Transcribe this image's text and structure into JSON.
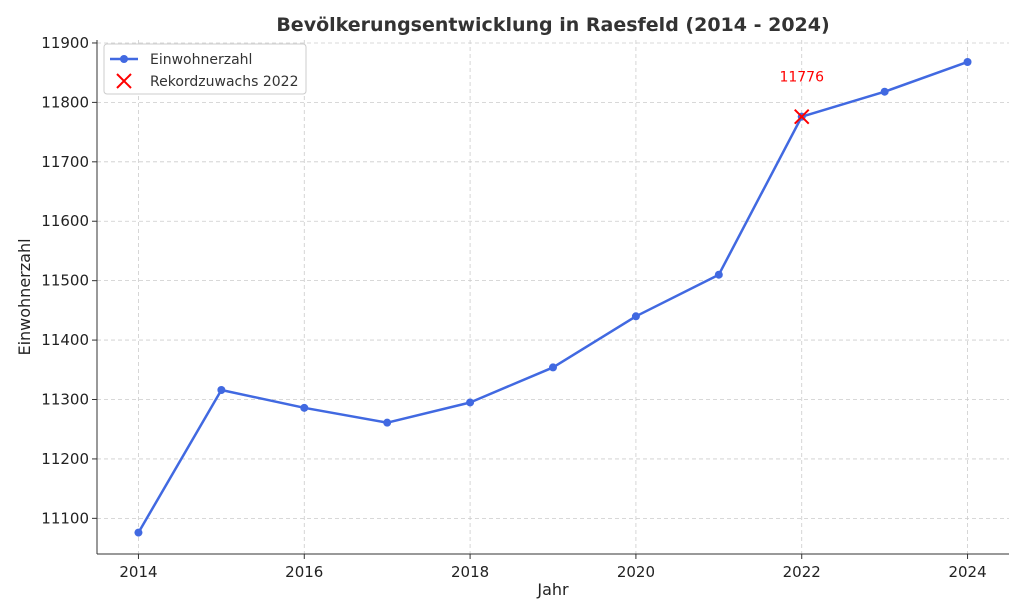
{
  "chart_data": {
    "type": "line",
    "title": "Bevölkerungsentwicklung in Raesfeld (2014 - 2024)",
    "xlabel": "Jahr",
    "ylabel": "Einwohnerzahl",
    "x": [
      2014,
      2015,
      2016,
      2017,
      2018,
      2019,
      2020,
      2021,
      2022,
      2023,
      2024
    ],
    "x_ticks": [
      2014,
      2016,
      2018,
      2020,
      2022,
      2024
    ],
    "y_ticks": [
      11100,
      11200,
      11300,
      11400,
      11500,
      11600,
      11700,
      11800,
      11900
    ],
    "xlim": [
      2013.5,
      2024.5
    ],
    "ylim": [
      11040,
      11905
    ],
    "grid": true,
    "legend_position": "top-left",
    "series": [
      {
        "name": "Einwohnerzahl",
        "color": "#4169e1",
        "values": [
          11076,
          11316,
          11286,
          11261,
          11295,
          11354,
          11440,
          11510,
          11776,
          11818,
          11868
        ]
      }
    ],
    "highlight": {
      "name": "Rekordzuwachs 2022",
      "x": 2022,
      "y": 11776,
      "color": "#ff0000",
      "marker": "x",
      "label": "11776"
    }
  }
}
